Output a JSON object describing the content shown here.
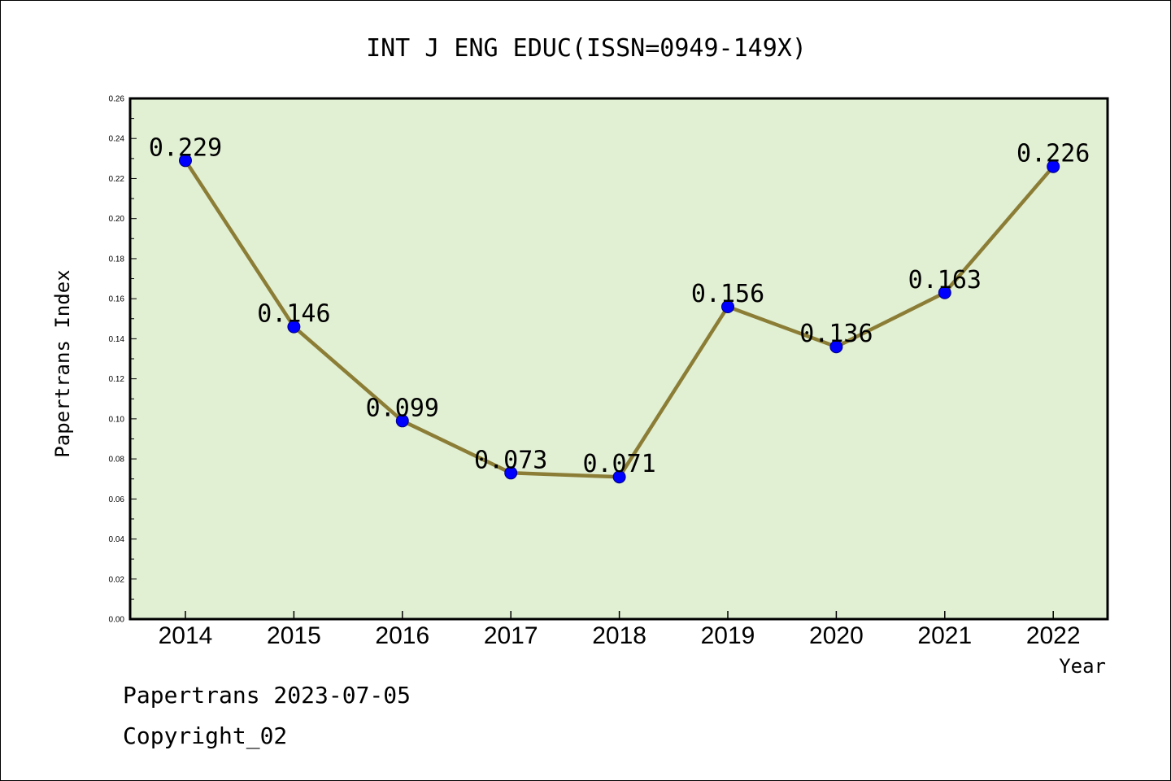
{
  "chart_data": {
    "type": "line",
    "title": "INT J ENG EDUC(ISSN=0949-149X)",
    "xlabel": "Year",
    "ylabel": "Papertrans Index",
    "categories": [
      "2014",
      "2015",
      "2016",
      "2017",
      "2018",
      "2019",
      "2020",
      "2021",
      "2022"
    ],
    "series": [
      {
        "values": [
          0.229,
          0.146,
          0.099,
          0.073,
          0.071,
          0.156,
          0.136,
          0.163,
          0.226
        ],
        "labels": [
          "0.229",
          "0.146",
          "0.099",
          "0.073",
          "0.071",
          "0.156",
          "0.136",
          "0.163",
          "0.226"
        ]
      }
    ],
    "ylim": [
      0,
      0.26
    ],
    "yticks": [
      "0.00",
      "0.02",
      "0.04",
      "0.06",
      "0.08",
      "0.10",
      "0.12",
      "0.14",
      "0.16",
      "0.18",
      "0.20",
      "0.22",
      "0.24",
      "0.26"
    ],
    "grid": false,
    "legend": "none"
  },
  "footer": {
    "line1": "Papertrans 2023-07-05",
    "line2": "Copyright_02"
  },
  "colors": {
    "plot_background": "#e1efd3",
    "line": "#8b7d35",
    "marker": "#0000ff",
    "marker_edge": "#000080"
  }
}
